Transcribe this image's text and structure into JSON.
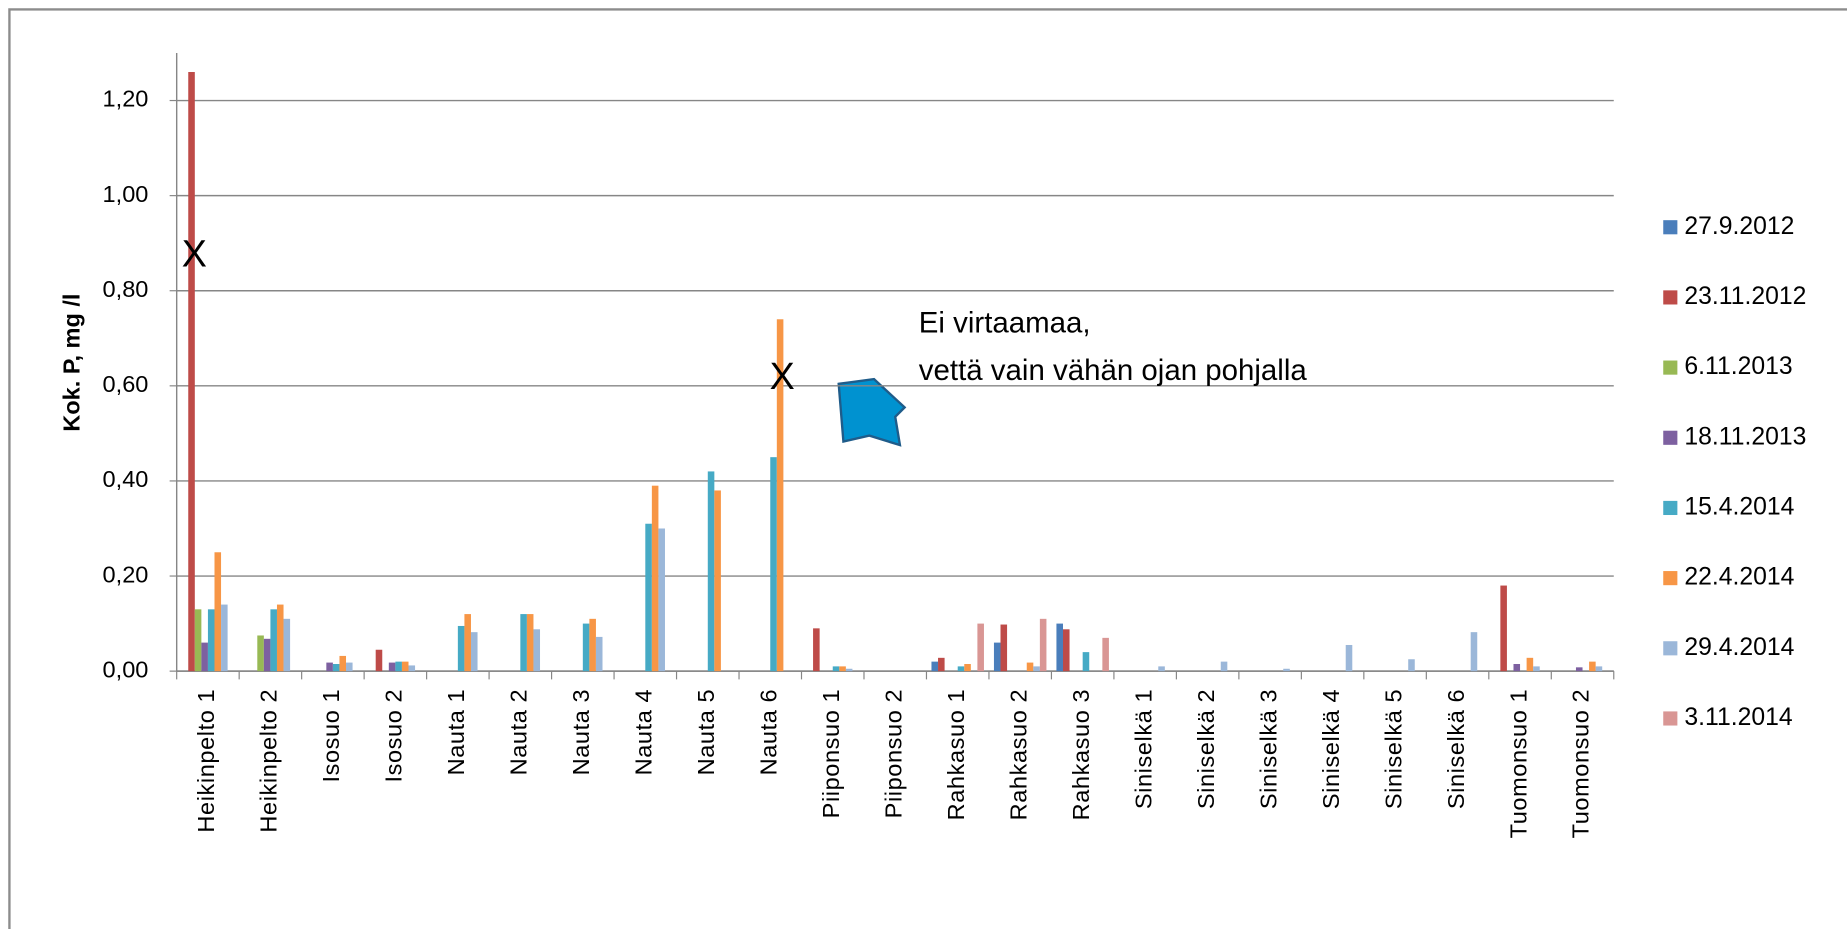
{
  "chart_data": {
    "type": "bar",
    "y_label": "Kok. P, mg /l",
    "categories": [
      "Heikinpelto 1",
      "Heikinpelto 2",
      "Isosuo 1",
      "Isosuo 2",
      "Nauta 1",
      "Nauta 2",
      "Nauta 3",
      "Nauta 4",
      "Nauta 5",
      "Nauta 6",
      "Piiponsuo 1",
      "Piiponsuo 2",
      "Rahkasuo 1",
      "Rahkasuo 2",
      "Rahkasuo 3",
      "Siniselkä 1",
      "Siniselkä 2",
      "Siniselkä 3",
      "Siniselkä 4",
      "Siniselkä 5",
      "Siniselkä 6",
      "Tuomonsuo 1",
      "Tuomonsuo 2"
    ],
    "series": [
      {
        "name": "27.9.2012",
        "color": "#4a7ebb",
        "values": [
          null,
          null,
          null,
          null,
          null,
          null,
          null,
          null,
          null,
          null,
          null,
          null,
          0.02,
          0.06,
          0.1,
          null,
          null,
          null,
          null,
          null,
          null,
          null,
          null
        ]
      },
      {
        "name": "23.11.2012",
        "color": "#be4b48",
        "values": [
          1.26,
          null,
          null,
          0.045,
          null,
          null,
          null,
          null,
          null,
          null,
          0.09,
          null,
          0.028,
          0.098,
          0.088,
          null,
          null,
          null,
          null,
          null,
          null,
          0.18,
          null
        ]
      },
      {
        "name": "6.11.2013",
        "color": "#98b954",
        "values": [
          0.13,
          0.075,
          null,
          null,
          null,
          null,
          null,
          null,
          null,
          null,
          null,
          null,
          null,
          null,
          null,
          null,
          null,
          null,
          null,
          null,
          null,
          null,
          null
        ]
      },
      {
        "name": "18.11.2013",
        "color": "#7d60a0",
        "values": [
          0.06,
          0.068,
          0.018,
          0.018,
          null,
          null,
          null,
          null,
          null,
          null,
          null,
          null,
          null,
          null,
          null,
          null,
          null,
          null,
          null,
          null,
          null,
          0.015,
          0.008
        ]
      },
      {
        "name": "15.4.2014",
        "color": "#46aac5",
        "values": [
          0.13,
          0.13,
          0.015,
          0.02,
          0.095,
          0.12,
          0.1,
          0.31,
          0.42,
          0.45,
          0.01,
          null,
          0.01,
          null,
          0.04,
          null,
          null,
          null,
          null,
          null,
          null,
          null,
          null
        ]
      },
      {
        "name": "22.4.2014",
        "color": "#f79646",
        "values": [
          0.25,
          0.14,
          0.032,
          0.02,
          0.12,
          0.12,
          0.11,
          0.39,
          0.38,
          0.74,
          0.01,
          null,
          0.015,
          0.018,
          null,
          null,
          null,
          null,
          null,
          null,
          null,
          0.028,
          0.02
        ]
      },
      {
        "name": "29.4.2014",
        "color": "#9bb7d9",
        "values": [
          0.14,
          0.11,
          0.018,
          0.012,
          0.082,
          0.088,
          0.072,
          0.3,
          null,
          null,
          0.005,
          null,
          null,
          0.01,
          null,
          0.01,
          0.02,
          0.005,
          0.055,
          0.025,
          0.082,
          0.01,
          0.01
        ]
      },
      {
        "name": "3.11.2014",
        "color": "#d99694",
        "values": [
          null,
          null,
          null,
          null,
          null,
          null,
          null,
          null,
          null,
          null,
          null,
          null,
          0.1,
          0.11,
          0.07,
          null,
          null,
          null,
          null,
          null,
          null,
          null,
          null
        ]
      }
    ],
    "ylim": [
      0,
      1.3
    ],
    "yticks": [
      {
        "value": 0,
        "label": "0,00"
      },
      {
        "value": 0.2,
        "label": "0,20"
      },
      {
        "value": 0.4,
        "label": "0,40"
      },
      {
        "value": 0.6,
        "label": "0,60"
      },
      {
        "value": 0.8,
        "label": "0,80"
      },
      {
        "value": 1.0,
        "label": "1,00"
      },
      {
        "value": 1.2,
        "label": "1,20"
      }
    ],
    "grid": true,
    "legend": "right",
    "markers": [
      "X",
      "X"
    ],
    "annotation_lines": [
      "Ei virtaamaa,",
      "vettä vain vähän ojan pohjalla"
    ]
  }
}
